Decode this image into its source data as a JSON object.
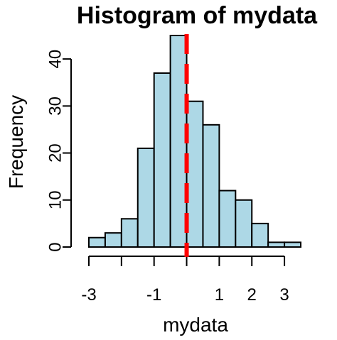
{
  "chart_data": {
    "type": "bar",
    "subtype": "histogram",
    "title": "Histogram of mydata",
    "xlabel": "mydata",
    "ylabel": "Frequency",
    "bin_width": 0.5,
    "bins": [
      {
        "start": -3.0,
        "end": -2.5,
        "count": 2
      },
      {
        "start": -2.5,
        "end": -2.0,
        "count": 3
      },
      {
        "start": -2.0,
        "end": -1.5,
        "count": 6
      },
      {
        "start": -1.5,
        "end": -1.0,
        "count": 21
      },
      {
        "start": -1.0,
        "end": -0.5,
        "count": 37
      },
      {
        "start": -0.5,
        "end": 0.0,
        "count": 45
      },
      {
        "start": 0.0,
        "end": 0.5,
        "count": 31
      },
      {
        "start": 0.5,
        "end": 1.0,
        "count": 26
      },
      {
        "start": 1.0,
        "end": 1.5,
        "count": 12
      },
      {
        "start": 1.5,
        "end": 2.0,
        "count": 10
      },
      {
        "start": 2.0,
        "end": 2.5,
        "count": 5
      },
      {
        "start": 2.5,
        "end": 3.0,
        "count": 1
      },
      {
        "start": 3.0,
        "end": 3.5,
        "count": 1
      }
    ],
    "xlim": [
      -3,
      3.5
    ],
    "ylim": [
      0,
      45
    ],
    "x_ticks": [
      -3,
      -2,
      -1,
      0,
      1,
      2,
      3
    ],
    "x_tick_labels": [
      "-3",
      "",
      "-1",
      "",
      "1",
      "2",
      "3"
    ],
    "y_ticks": [
      0,
      10,
      20,
      30,
      40
    ],
    "y_tick_labels": [
      "0",
      "10",
      "20",
      "30",
      "40"
    ],
    "vline": {
      "x": 0.0,
      "style": "dashed",
      "color": "#ff0000"
    },
    "bar_color": "#add8e6",
    "bar_edge_color": "#000000",
    "grid": false,
    "legend": "none"
  }
}
